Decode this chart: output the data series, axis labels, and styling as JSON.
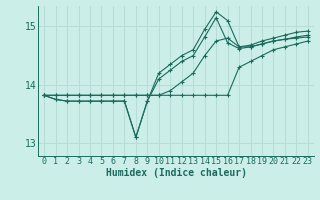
{
  "xlabel": "Humidex (Indice chaleur)",
  "bg_color": "#cceee8",
  "line_color": "#1a6b5e",
  "xlim": [
    -0.5,
    23.5
  ],
  "ylim": [
    12.78,
    15.35
  ],
  "yticks": [
    13,
    14,
    15
  ],
  "xticks": [
    0,
    1,
    2,
    3,
    4,
    5,
    6,
    7,
    8,
    9,
    10,
    11,
    12,
    13,
    14,
    15,
    16,
    17,
    18,
    19,
    20,
    21,
    22,
    23
  ],
  "lines": [
    [
      13.82,
      13.82,
      13.82,
      13.82,
      13.82,
      13.82,
      13.82,
      13.82,
      13.82,
      13.82,
      13.82,
      13.82,
      13.82,
      13.82,
      13.82,
      13.82,
      13.82,
      14.3,
      14.4,
      14.5,
      14.6,
      14.65,
      14.7,
      14.75
    ],
    [
      13.82,
      13.82,
      13.82,
      13.82,
      13.82,
      13.82,
      13.82,
      13.82,
      13.82,
      13.82,
      13.82,
      13.9,
      14.05,
      14.2,
      14.5,
      14.75,
      14.8,
      14.65,
      14.65,
      14.7,
      14.75,
      14.78,
      14.8,
      14.82
    ],
    [
      13.82,
      13.75,
      13.72,
      13.72,
      13.72,
      13.72,
      13.72,
      13.72,
      13.1,
      13.72,
      14.1,
      14.25,
      14.4,
      14.5,
      14.82,
      15.15,
      14.72,
      14.62,
      14.65,
      14.7,
      14.75,
      14.78,
      14.82,
      14.85
    ],
    [
      13.82,
      13.75,
      13.72,
      13.72,
      13.72,
      13.72,
      13.72,
      13.72,
      13.1,
      13.72,
      14.2,
      14.35,
      14.5,
      14.6,
      14.95,
      15.25,
      15.1,
      14.65,
      14.68,
      14.75,
      14.8,
      14.85,
      14.9,
      14.92
    ]
  ],
  "grid_color": "#b8ddd8",
  "tick_fontsize": 6,
  "xlabel_fontsize": 7
}
